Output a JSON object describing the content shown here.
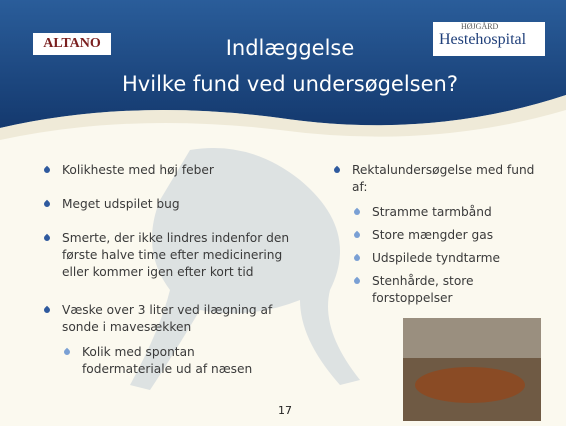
{
  "header": {
    "title": [
      "Indlæggelse",
      "Hvilke fund ved undersøgelsen?"
    ],
    "logo_left": "ALTANO",
    "logo_right": {
      "top": "HØJGÅRD",
      "bottom": "Hestehospital"
    }
  },
  "left_column": {
    "bullets": [
      {
        "text": "Kolikheste med høj feber"
      },
      {
        "text": "Meget udspilet bug"
      },
      {
        "text": "Smerte, der ikke lindres indenfor den første halve time efter medicinering eller kommer igen efter kort tid"
      },
      {
        "text": "Væske over 3 liter ved ilægning af sonde i mavesækken",
        "sub": [
          "Kolik med spontan fodermateriale ud af næsen"
        ]
      }
    ]
  },
  "right_column": {
    "text": "Rektalundersøgelse med fund af:",
    "sub": [
      "Stramme tarmbånd",
      "Store mængder gas",
      "Udspilede tyndtarme",
      "Stenhårde, store forstoppelser"
    ]
  },
  "page_number": "17"
}
